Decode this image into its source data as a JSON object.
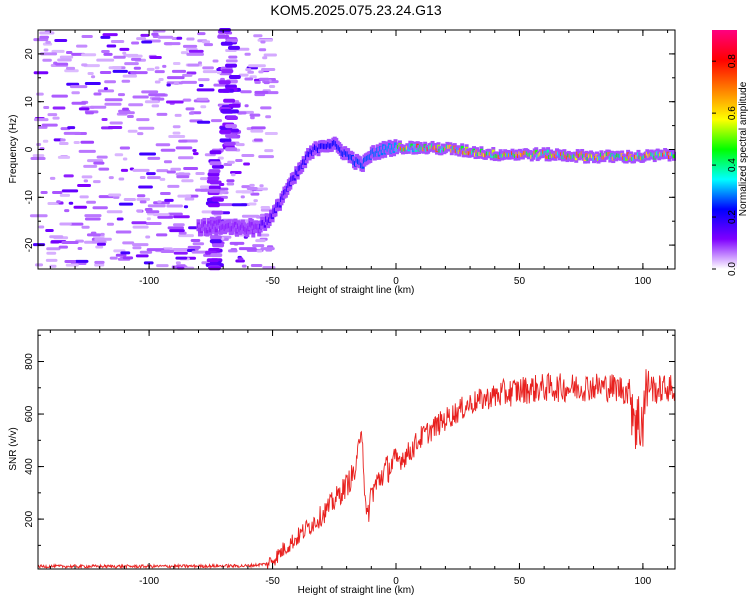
{
  "title": "KOM5.2025.075.23.24.G13",
  "chart_data": [
    {
      "type": "heatmap",
      "xlabel": "Height of straight line (km)",
      "ylabel": "Frequency (Hz)",
      "xlim": [
        -145,
        113
      ],
      "ylim": [
        -25,
        25
      ],
      "xticks": [
        -100,
        -50,
        0,
        50,
        100
      ],
      "yticks": [
        -20,
        -10,
        0,
        10,
        20
      ],
      "colorbar": {
        "label": "Normalized spectral amplitude",
        "range": [
          0,
          0.92
        ],
        "ticks": [
          "0.0",
          "0.2",
          "0.4",
          "0.6",
          "0.8"
        ],
        "tick_values": [
          0.0,
          0.2,
          0.4,
          0.6,
          0.8
        ],
        "colors": [
          "#ffffff",
          "#7f00ff",
          "#0000ff",
          "#00ffff",
          "#00ff00",
          "#ffff00",
          "#ff8000",
          "#ff0000",
          "#ff0080"
        ]
      },
      "ridge": {
        "x": [
          -55,
          -50,
          -45,
          -40,
          -35,
          -30,
          -25,
          -20,
          -15,
          -13,
          -10,
          -5,
          0,
          20,
          40,
          60,
          80,
          100,
          113
        ],
        "freq": [
          -16,
          -14,
          -9,
          -5,
          -1,
          1,
          1,
          -1,
          -3,
          -3,
          -1,
          0,
          0.5,
          0.2,
          -1,
          -1,
          -1.5,
          -1.5,
          -1
        ]
      }
    },
    {
      "type": "line",
      "xlabel": "Height of straight line (km)",
      "ylabel": "SNR (v/v)",
      "xlim": [
        -145,
        113
      ],
      "ylim": [
        10,
        920
      ],
      "xticks": [
        -100,
        -50,
        0,
        50,
        100
      ],
      "yticks": [
        200,
        400,
        600,
        800
      ],
      "color": "#e8201e",
      "x": [
        -145,
        -100,
        -60,
        -52,
        -48,
        -45,
        -40,
        -35,
        -30,
        -25,
        -20,
        -16,
        -14,
        -12,
        -10,
        -5,
        0,
        5,
        10,
        20,
        30,
        40,
        50,
        60,
        70,
        80,
        90,
        95,
        98,
        100,
        102,
        105,
        110,
        113
      ],
      "snr": [
        20,
        20,
        22,
        30,
        60,
        90,
        130,
        175,
        215,
        270,
        330,
        390,
        580,
        180,
        300,
        380,
        420,
        450,
        510,
        580,
        640,
        670,
        690,
        700,
        700,
        705,
        700,
        680,
        550,
        600,
        720,
        690,
        700,
        690
      ]
    }
  ]
}
